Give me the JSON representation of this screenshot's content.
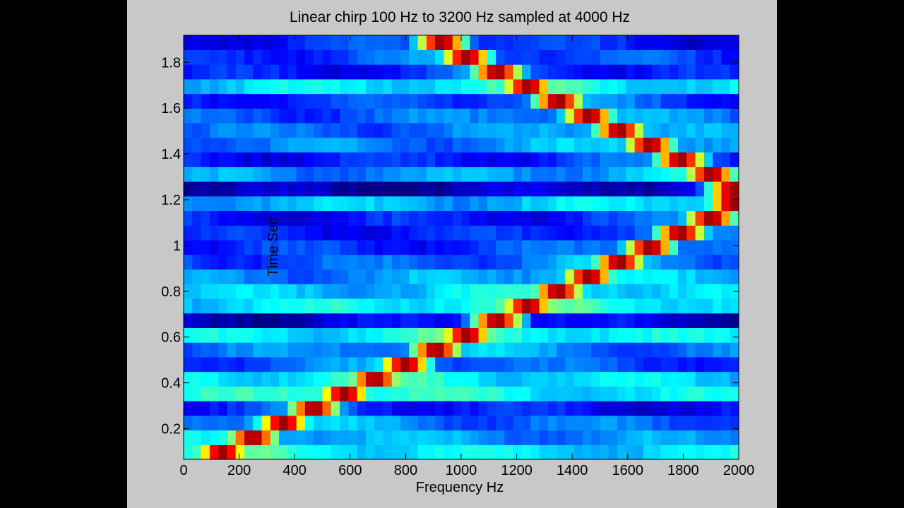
{
  "chart_data": {
    "type": "heatmap",
    "title": "Linear chirp 100 Hz to 3200 Hz sampled at 4000 Hz",
    "xlabel": "Frequency Hz",
    "ylabel": "Time Sec",
    "xlim": [
      0,
      2000
    ],
    "ylim": [
      0.066,
      1.918
    ],
    "x_ticks": [
      0,
      200,
      400,
      600,
      800,
      1000,
      1200,
      1400,
      1600,
      1800,
      2000
    ],
    "y_ticks": [
      0.2,
      0.4,
      0.6,
      0.8,
      1.0,
      1.2,
      1.4,
      1.6,
      1.8
    ],
    "y_tick_labels": [
      "0.2",
      "0.4",
      "0.6",
      "0.8",
      "1",
      "1.2",
      "1.4",
      "1.6",
      "1.8"
    ],
    "colormap": "jet",
    "grid": false,
    "n_time_bins": 29,
    "time_bin_width": 0.0639,
    "freq_bin_width": 31.25,
    "peak_frequency_hz": [
      140,
      250,
      360,
      470,
      580,
      690,
      800,
      910,
      1020,
      1130,
      1240,
      1350,
      1460,
      1570,
      1680,
      1790,
      1900,
      1980,
      1980,
      1900,
      1790,
      1680,
      1570,
      1460,
      1350,
      1240,
      1130,
      1020,
      930
    ],
    "background_level": [
      0.34,
      0.26,
      0.22,
      0.12,
      0.35,
      0.33,
      0.18,
      0.22,
      0.34,
      0.06,
      0.35,
      0.3,
      0.25,
      0.2,
      0.16,
      0.14,
      0.13,
      0.3,
      0.04,
      0.26,
      0.14,
      0.24,
      0.22,
      0.2,
      0.16,
      0.33,
      0.12,
      0.16,
      0.12
    ]
  }
}
